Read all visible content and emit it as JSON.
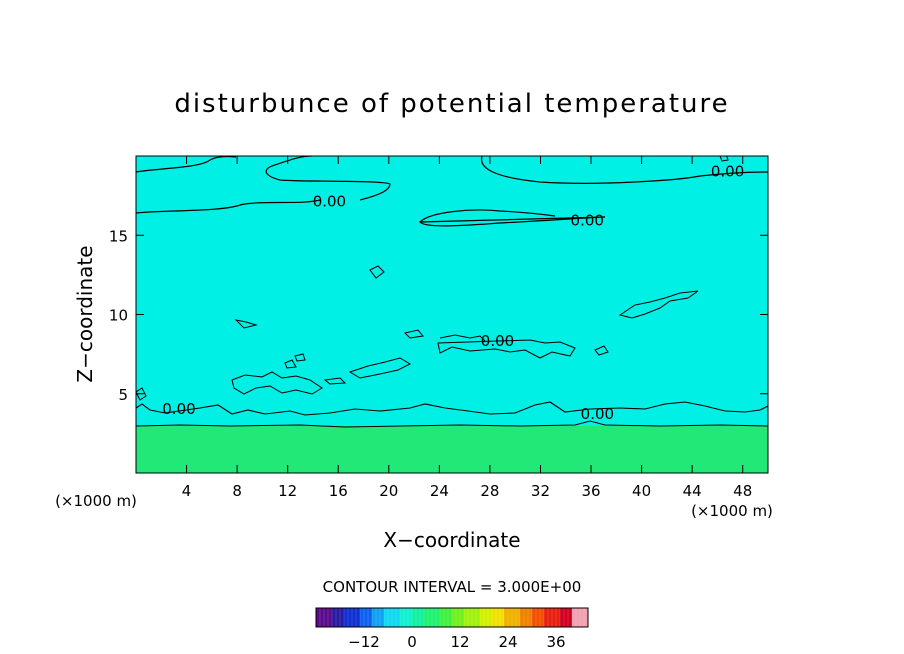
{
  "chart_data": {
    "type": "heatmap",
    "title": "disturbunce of potential temperature",
    "xlabel": "X−coordinate",
    "ylabel": "Z−coordinate",
    "x_unit_left": "(×1000 m)",
    "x_unit_right": "(×1000 m)",
    "xlim": [
      0,
      50
    ],
    "ylim": [
      0,
      20
    ],
    "x_ticks": [
      4,
      8,
      12,
      16,
      20,
      24,
      28,
      32,
      36,
      40,
      44,
      48
    ],
    "y_ticks": [
      5,
      10,
      15
    ],
    "x_tick_labels": [
      "4",
      "8",
      "12",
      "16",
      "20",
      "24",
      "28",
      "32",
      "36",
      "40",
      "44",
      "48"
    ],
    "y_tick_labels": [
      "5",
      "10",
      "15"
    ],
    "contour_interval_text": "CONTOUR INTERVAL = 3.000E+00",
    "contour_level_label": "0.00",
    "contour_labels": [
      {
        "text": "0.00",
        "x": 15.3,
        "z": 17.2
      },
      {
        "text": "0.00",
        "x": 35.7,
        "z": 16.0
      },
      {
        "text": "0.00",
        "x": 46.8,
        "z": 19.1
      },
      {
        "text": "0.00",
        "x": 28.6,
        "z": 8.4
      },
      {
        "text": "0.00",
        "x": 3.4,
        "z": 4.1
      },
      {
        "text": "0.00",
        "x": 36.5,
        "z": 3.8
      }
    ],
    "field": {
      "upper_region": {
        "z_min": 3.0,
        "z_max": 20,
        "value": 0.5,
        "color": "#00f0e6"
      },
      "lower_region": {
        "z_min": 0,
        "z_max": 3.0,
        "value": 6,
        "color": "#22e878"
      }
    },
    "colorbar": {
      "range": [
        -24,
        44
      ],
      "tick_labels": [
        "−12",
        "0",
        "12",
        "24",
        "36"
      ],
      "tick_values": [
        -12,
        0,
        12,
        24,
        36
      ],
      "colors": [
        "#5a0a8a",
        "#2a1aa0",
        "#1030d0",
        "#1060f0",
        "#10a0f0",
        "#10d8f0",
        "#10f0d0",
        "#10f0a0",
        "#20f070",
        "#40f040",
        "#70f020",
        "#a0f010",
        "#d0f000",
        "#f0e000",
        "#f0b000",
        "#f08000",
        "#f05000",
        "#e82010",
        "#d00020",
        "#f0a0b0"
      ]
    }
  }
}
